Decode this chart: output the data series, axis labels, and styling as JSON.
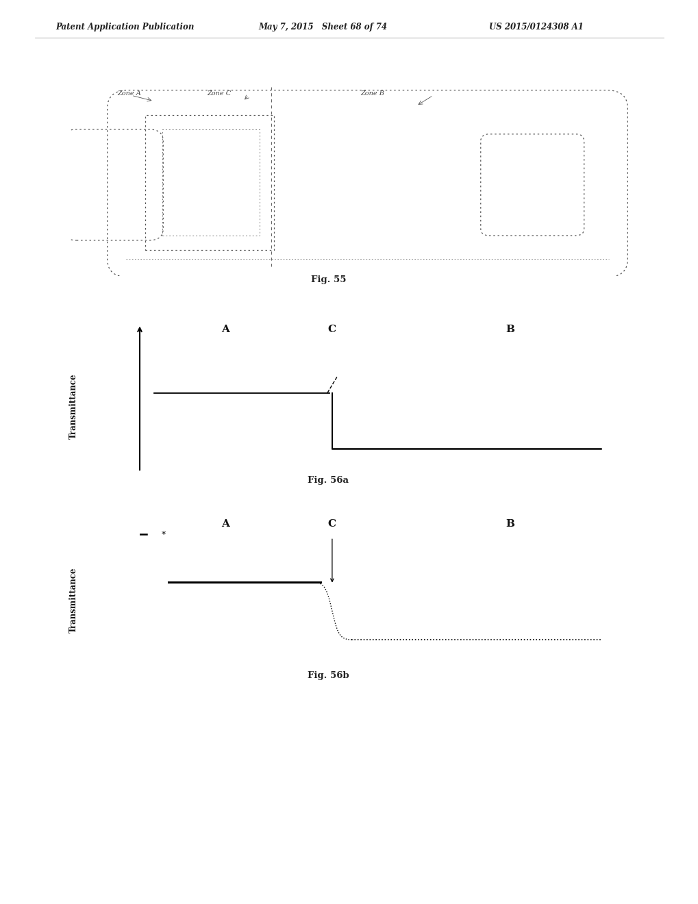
{
  "header_left": "Patent Application Publication",
  "header_mid": "May 7, 2015   Sheet 68 of 74",
  "header_right": "US 2015/0124308 A1",
  "header_fontsize": 8.5,
  "fig55_label": "Fig. 55",
  "fig56a_label": "Fig. 56a",
  "fig56b_label": "Fig. 56b",
  "zone_a_label": "Zone A",
  "zone_b_label": "Zone B",
  "zone_c_label": "Zone C",
  "label_A": "A",
  "label_B": "B",
  "label_C": "C",
  "transmittance_label": "Transmittance",
  "bg_color": "#ffffff",
  "line_color": "#000000"
}
